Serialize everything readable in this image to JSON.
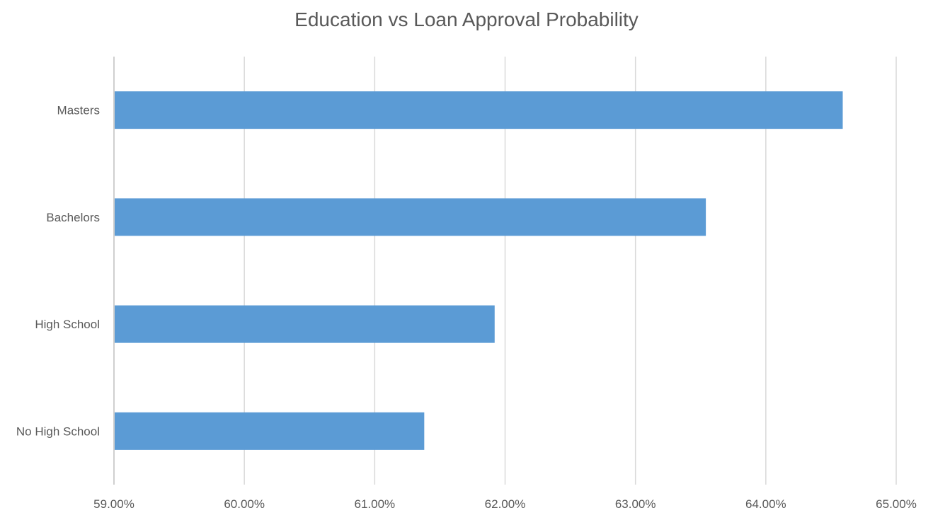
{
  "chart_data": {
    "type": "bar",
    "orientation": "horizontal",
    "title": "Education vs Loan Approval Probability",
    "xlabel": "",
    "ylabel": "",
    "categories": [
      "Masters",
      "Bachelors",
      "High School",
      "No High School"
    ],
    "values": [
      64.59,
      63.54,
      61.92,
      61.38
    ],
    "value_unit": "%",
    "xlim": [
      59,
      65
    ],
    "x_ticks": [
      "59.00%",
      "60.00%",
      "61.00%",
      "62.00%",
      "63.00%",
      "64.00%",
      "65.00%"
    ],
    "grid": "vertical",
    "legend": "none",
    "colors": {
      "bar": "#5B9BD5",
      "gridline": "#D9D9D9",
      "axis": "#BFBFBF",
      "text": "#595959",
      "title": "#595959"
    }
  }
}
